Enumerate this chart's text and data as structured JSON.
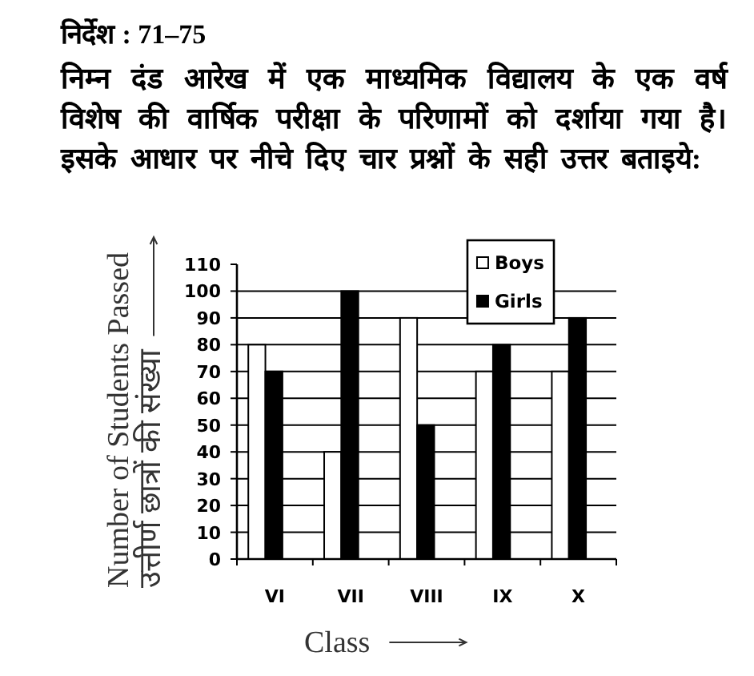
{
  "chart_data": {
    "type": "bar",
    "title": "निर्देश : 71–75",
    "subtitle": "निम्न दंड आरेख में एक माध्यमिक विद्यालय के एक वर्ष विशेष की वार्षिक परीक्षा के परिणामों को दर्शाया गया है। इसके आधार पर नीचे दिए चार प्रश्नों के सही उत्तर बताइये:",
    "xlabel": "Class",
    "ylabel": "Number of Students Passed\nउत्तीर्ण छात्रों की संख्या",
    "categories": [
      "VI",
      "VII",
      "VIII",
      "IX",
      "X"
    ],
    "series": [
      {
        "name": "Boys",
        "color": "#ffffff",
        "values": [
          80,
          40,
          90,
          70,
          70
        ]
      },
      {
        "name": "Girls",
        "color": "#000000",
        "values": [
          70,
          100,
          50,
          80,
          90
        ]
      }
    ],
    "ylim": [
      0,
      110
    ],
    "yticks": [
      0,
      10,
      20,
      30,
      40,
      50,
      60,
      70,
      80,
      90,
      100,
      110
    ],
    "grid": "y",
    "legend": "top right"
  }
}
